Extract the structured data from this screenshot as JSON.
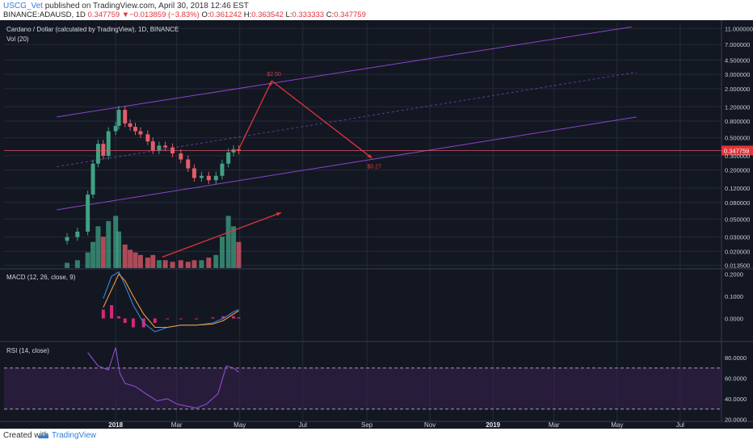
{
  "header": {
    "user": "USCG_Vet",
    "published": " published on TradingView.com, April 30, 2018 12:46 EST",
    "symbol": "BINANCE:ADAUSD, 1D",
    "price": "0.347759",
    "change": "▼−0.013859 (−3.83%)",
    "ohlc_o_label": "O:",
    "ohlc_o": "0.361242",
    "ohlc_h_label": "H:",
    "ohlc_h": "0.363542",
    "ohlc_l_label": "L:",
    "ohlc_l": "0.333333",
    "ohlc_c_label": "C:",
    "ohlc_c": "0.347759"
  },
  "footer": {
    "created": "Created with",
    "brand": "TradingView"
  },
  "colors": {
    "background": "#131722",
    "grid": "#262b3a",
    "up": "#3fa284",
    "down": "#e35c6a",
    "channel": "#8a45c8",
    "annotation": "#e0353a",
    "macd_line": "#3a86d6",
    "signal_line": "#f09a3a",
    "histogram": "#d12a7a",
    "rsi_line": "#8e4ccf",
    "rsi_band": "#3a2151"
  },
  "chart_data": [
    {
      "type": "candlestick",
      "title": "Cardano / Dollar (calculated by TradingView), 1D, BINANCE",
      "subtitle": "Vol (20)",
      "y_scale": "log",
      "y_ticks": [
        "11.000000",
        "7.000000",
        "4.500000",
        "3.000000",
        "2.000000",
        "1.200000",
        "0.800000",
        "0.500000",
        "0.300000",
        "0.200000",
        "0.120000",
        "0.080000",
        "0.050000",
        "0.030000",
        "0.020000",
        "0.013500"
      ],
      "ylim": [
        0.0125,
        13
      ],
      "last_price_label": "0.347759",
      "x_tick_labels": [
        "2018",
        "Mar",
        "May",
        "Jul",
        "Sep",
        "Nov",
        "2019",
        "Mar",
        "May",
        "Jul"
      ],
      "x": [
        "2017-11-15",
        "2017-11-25",
        "2017-12-05",
        "2017-12-10",
        "2017-12-15",
        "2017-12-20",
        "2017-12-25",
        "2018-01-01",
        "2018-01-04",
        "2018-01-10",
        "2018-01-15",
        "2018-01-20",
        "2018-01-25",
        "2018-02-01",
        "2018-02-06",
        "2018-02-12",
        "2018-02-18",
        "2018-02-25",
        "2018-03-05",
        "2018-03-12",
        "2018-03-18",
        "2018-03-25",
        "2018-04-01",
        "2018-04-08",
        "2018-04-14",
        "2018-04-20",
        "2018-04-25",
        "2018-04-30"
      ],
      "close": [
        0.03,
        0.035,
        0.1,
        0.24,
        0.42,
        0.3,
        0.6,
        0.7,
        1.1,
        0.75,
        0.68,
        0.6,
        0.55,
        0.45,
        0.35,
        0.4,
        0.38,
        0.32,
        0.27,
        0.21,
        0.16,
        0.17,
        0.15,
        0.17,
        0.24,
        0.33,
        0.36,
        0.347759
      ],
      "volume": [
        0.1,
        0.15,
        0.3,
        0.5,
        0.8,
        0.6,
        0.9,
        1.0,
        0.7,
        0.45,
        0.35,
        0.3,
        0.25,
        0.2,
        0.25,
        0.15,
        0.15,
        0.12,
        0.15,
        0.12,
        0.15,
        0.15,
        0.2,
        0.25,
        0.6,
        1.0,
        0.8,
        0.5
      ],
      "annotations": [
        {
          "text": "$2.50",
          "x": "2018-06-01",
          "y": 2.5
        },
        {
          "text": "$0.27",
          "x": "2018-09-06",
          "y": 0.27
        }
      ],
      "channel_lines": [
        {
          "name": "upper",
          "start": [
            "2017-11-05",
            0.9
          ],
          "end": [
            "2019-05-15",
            11.5
          ]
        },
        {
          "name": "middle",
          "start": [
            "2017-11-05",
            0.22
          ],
          "end": [
            "2019-05-20",
            3.2
          ]
        },
        {
          "name": "lower",
          "start": [
            "2017-11-05",
            0.065
          ],
          "end": [
            "2019-05-20",
            0.9
          ]
        }
      ],
      "projection_path": [
        [
          "2018-04-30",
          0.36
        ],
        [
          "2018-06-01",
          2.5
        ],
        [
          "2018-09-06",
          0.28
        ]
      ],
      "volume_trend_arrow": [
        [
          "2018-02-15",
          0.017
        ],
        [
          "2018-06-10",
          0.06
        ]
      ]
    },
    {
      "type": "line",
      "title": "MACD (12, 26, close, 9)",
      "y_ticks": [
        "0.2000",
        "0.1000",
        "0.0000"
      ],
      "ylim": [
        -0.1,
        0.22
      ],
      "x": [
        "2017-12-20",
        "2017-12-28",
        "2018-01-04",
        "2018-01-10",
        "2018-01-18",
        "2018-01-28",
        "2018-02-08",
        "2018-02-20",
        "2018-03-05",
        "2018-03-20",
        "2018-04-05",
        "2018-04-15",
        "2018-04-25",
        "2018-04-30"
      ],
      "series": [
        {
          "values": [
            0.09,
            0.19,
            0.21,
            0.15,
            0.06,
            -0.02,
            -0.06,
            -0.04,
            -0.03,
            -0.03,
            -0.02,
            0.0,
            0.03,
            0.04
          ]
        },
        {
          "values": [
            0.05,
            0.13,
            0.2,
            0.17,
            0.1,
            0.02,
            -0.04,
            -0.04,
            -0.03,
            -0.03,
            -0.025,
            -0.01,
            0.02,
            0.035
          ]
        }
      ]
    },
    {
      "type": "line",
      "title": "RSI (14, close)",
      "y_ticks": [
        "80.0000",
        "60.0000",
        "40.0000",
        "20.0000"
      ],
      "ylim": [
        18,
        95
      ],
      "band": [
        30,
        70
      ],
      "x": [
        "2017-12-05",
        "2017-12-15",
        "2017-12-25",
        "2018-01-01",
        "2018-01-05",
        "2018-01-10",
        "2018-01-20",
        "2018-01-30",
        "2018-02-10",
        "2018-02-20",
        "2018-03-01",
        "2018-03-10",
        "2018-03-20",
        "2018-03-30",
        "2018-04-10",
        "2018-04-18",
        "2018-04-25",
        "2018-04-30"
      ],
      "values": [
        85,
        72,
        68,
        90,
        65,
        55,
        52,
        45,
        38,
        40,
        35,
        33,
        31,
        35,
        45,
        72,
        70,
        66
      ]
    }
  ]
}
